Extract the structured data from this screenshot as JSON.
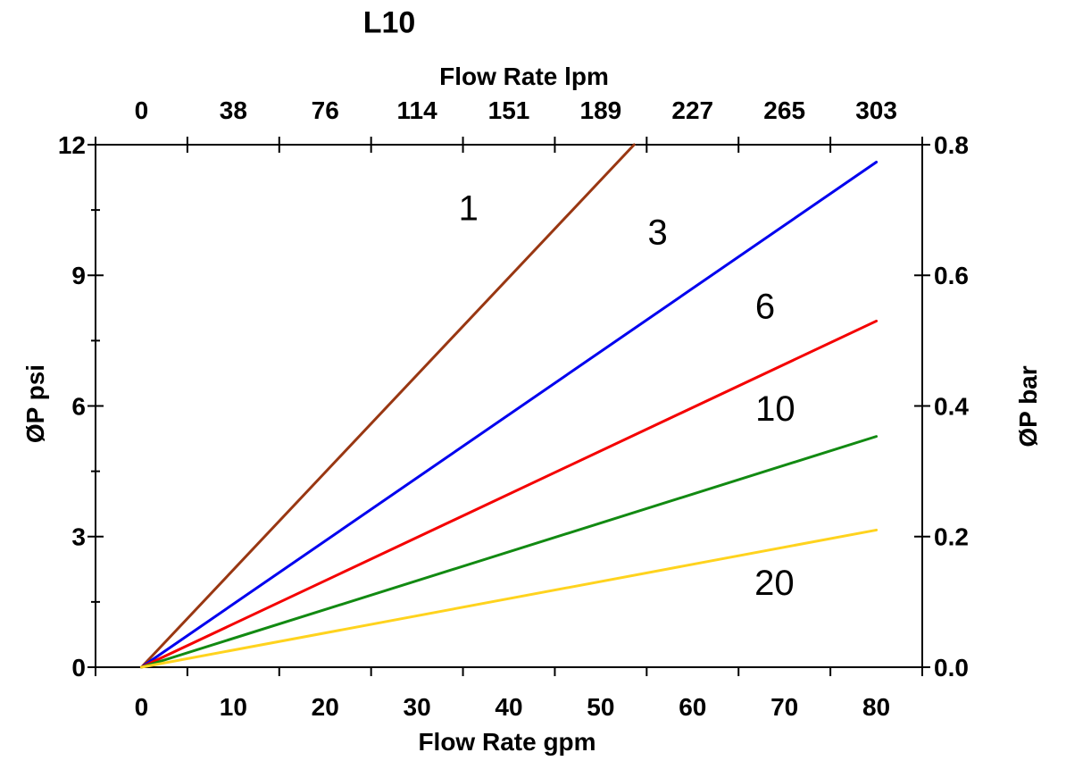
{
  "chart_data": {
    "type": "line",
    "title": "L10",
    "axes": {
      "top": {
        "label": "Flow Rate lpm",
        "ticks": [
          "0",
          "38",
          "76",
          "114",
          "151",
          "189",
          "227",
          "265",
          "303"
        ]
      },
      "bottom": {
        "label": "Flow Rate gpm",
        "ticks": [
          "0",
          "10",
          "20",
          "30",
          "40",
          "50",
          "60",
          "70",
          "80"
        ],
        "tick_values_gpm": [
          0,
          10,
          20,
          30,
          40,
          50,
          60,
          70,
          80
        ]
      },
      "left": {
        "label": "ØP psi",
        "ticks": [
          "0",
          "3",
          "6",
          "9",
          "12"
        ],
        "tick_values_psi": [
          0,
          3,
          6,
          9,
          12
        ],
        "range_psi": [
          0,
          12
        ],
        "minor_ticks_psi": [
          1.5,
          4.5,
          7.5,
          10.5
        ]
      },
      "right": {
        "label": "ØP bar",
        "ticks": [
          "0.0",
          "0.2",
          "0.4",
          "0.6",
          "0.8"
        ],
        "tick_values_bar": [
          0.0,
          0.2,
          0.4,
          0.6,
          0.8
        ]
      }
    },
    "grid": false,
    "legend": "inline-labels",
    "series": [
      {
        "label": "1",
        "color": "#993712",
        "x_gpm": [
          0,
          80
        ],
        "y_psi": [
          0,
          17.9
        ],
        "clipped_at_top": true,
        "label_pos": {
          "gpm": 35.6,
          "psi": 10.55
        }
      },
      {
        "label": "3",
        "color": "#0000EE",
        "x_gpm": [
          0,
          80
        ],
        "y_psi": [
          0,
          11.6
        ],
        "clipped_at_top": false,
        "label_pos": {
          "gpm": 56.2,
          "psi": 10.0
        }
      },
      {
        "label": "6",
        "color": "#F40000",
        "x_gpm": [
          0,
          80
        ],
        "y_psi": [
          0,
          7.95
        ],
        "clipped_at_top": false,
        "label_pos": {
          "gpm": 67.9,
          "psi": 8.3
        }
      },
      {
        "label": "10",
        "color": "#128A12",
        "x_gpm": [
          0,
          80
        ],
        "y_psi": [
          0,
          5.3
        ],
        "clipped_at_top": false,
        "label_pos": {
          "gpm": 69.0,
          "psi": 5.95
        }
      },
      {
        "label": "20",
        "color": "#FFD31E",
        "x_gpm": [
          0,
          80
        ],
        "y_psi": [
          0,
          3.15
        ],
        "clipped_at_top": false,
        "label_pos": {
          "gpm": 68.9,
          "psi": 1.95
        }
      }
    ],
    "axis_color": "#000000",
    "background_color": "#FFFFFF"
  }
}
